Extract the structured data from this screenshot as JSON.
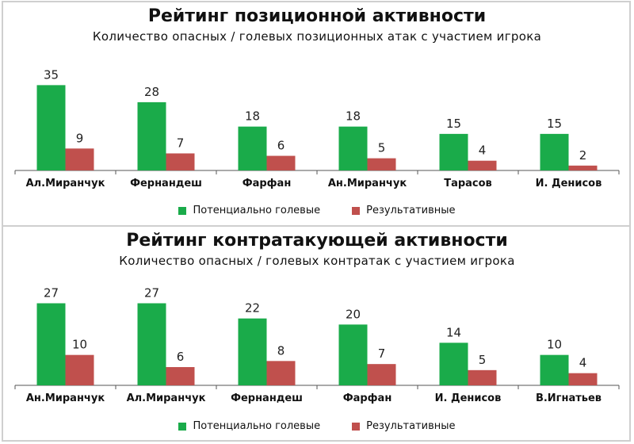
{
  "colors": {
    "potential": "#1aab4a",
    "effective": "#c0504d",
    "axis": "#555555"
  },
  "chart_data": [
    {
      "type": "bar",
      "title": "Рейтинг позиционной активности",
      "subtitle": "Количество опасных / голевых позиционных атак с участием игрока",
      "categories": [
        "Ал.Миранчук",
        "Фернандеш",
        "Фарфан",
        "Ан.Миранчук",
        "Тарасов",
        "И. Денисов"
      ],
      "series": [
        {
          "name": "Потенциально голевые",
          "values": [
            35,
            28,
            18,
            18,
            15,
            15
          ]
        },
        {
          "name": "Результативные",
          "values": [
            9,
            7,
            6,
            5,
            4,
            2
          ]
        }
      ],
      "ylim": [
        0,
        40
      ],
      "legend": "bottom"
    },
    {
      "type": "bar",
      "title": "Рейтинг контратакующей активности",
      "subtitle": "Количество опасных / голевых контратак с участием игрока",
      "categories": [
        "Ан.Миранчук",
        "Ал.Миранчук",
        "Фернандеш",
        "Фарфан",
        "И. Денисов",
        "В.Игнатьев"
      ],
      "series": [
        {
          "name": "Потенциально голевые",
          "values": [
            27,
            27,
            22,
            20,
            14,
            10
          ]
        },
        {
          "name": "Результативные",
          "values": [
            10,
            6,
            8,
            7,
            5,
            4
          ]
        }
      ],
      "ylim": [
        0,
        30
      ],
      "legend": "bottom"
    }
  ]
}
